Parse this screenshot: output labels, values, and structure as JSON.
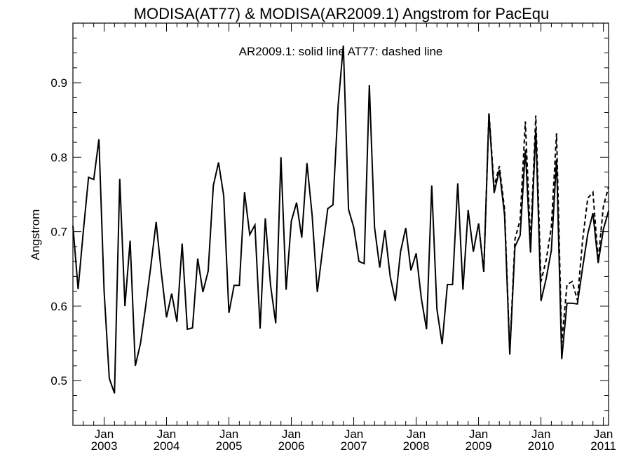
{
  "chart_data": {
    "type": "line",
    "title": "MODISA(AT77) & MODISA(AR2009.1)  Angstrom for PacEqu",
    "annotation": "AR2009.1: solid line   AT77: dashed line",
    "ylabel": "Angstrom",
    "xlabel": "",
    "ylim": [
      0.44,
      0.98
    ],
    "xlim": [
      "2002-07",
      "2011-02"
    ],
    "y_ticks": [
      "0.5",
      "0.6",
      "0.7",
      "0.8",
      "0.9"
    ],
    "x_ticks": [
      {
        "month": "Jan",
        "year": "2003",
        "date": "2003-01"
      },
      {
        "month": "Jan",
        "year": "2004",
        "date": "2004-01"
      },
      {
        "month": "Jan",
        "year": "2005",
        "date": "2005-01"
      },
      {
        "month": "Jan",
        "year": "2006",
        "date": "2006-01"
      },
      {
        "month": "Jan",
        "year": "2007",
        "date": "2007-01"
      },
      {
        "month": "Jan",
        "year": "2008",
        "date": "2008-01"
      },
      {
        "month": "Jan",
        "year": "2009",
        "date": "2009-01"
      },
      {
        "month": "Jan",
        "year": "2010",
        "date": "2010-01"
      },
      {
        "month": "Jan",
        "year": "2011",
        "date": "2011-01"
      }
    ],
    "grid": false,
    "series": [
      {
        "name": "AR2009.1",
        "style": "solid",
        "color": "#000000",
        "x": [
          "2002-07",
          "2002-08",
          "2002-09",
          "2002-10",
          "2002-11",
          "2002-12",
          "2003-01",
          "2003-02",
          "2003-03",
          "2003-04",
          "2003-05",
          "2003-06",
          "2003-07",
          "2003-08",
          "2003-09",
          "2003-10",
          "2003-11",
          "2003-12",
          "2004-01",
          "2004-02",
          "2004-03",
          "2004-04",
          "2004-05",
          "2004-06",
          "2004-07",
          "2004-08",
          "2004-09",
          "2004-10",
          "2004-11",
          "2004-12",
          "2005-01",
          "2005-02",
          "2005-03",
          "2005-04",
          "2005-05",
          "2005-06",
          "2005-07",
          "2005-08",
          "2005-09",
          "2005-10",
          "2005-11",
          "2005-12",
          "2006-01",
          "2006-02",
          "2006-03",
          "2006-04",
          "2006-05",
          "2006-06",
          "2006-07",
          "2006-08",
          "2006-09",
          "2006-10",
          "2006-11",
          "2006-12",
          "2007-01",
          "2007-02",
          "2007-03",
          "2007-04",
          "2007-05",
          "2007-06",
          "2007-07",
          "2007-08",
          "2007-09",
          "2007-10",
          "2007-11",
          "2007-12",
          "2008-01",
          "2008-02",
          "2008-03",
          "2008-04",
          "2008-05",
          "2008-06",
          "2008-07",
          "2008-08",
          "2008-09",
          "2008-10",
          "2008-11",
          "2008-12",
          "2009-01",
          "2009-02",
          "2009-03",
          "2009-04",
          "2009-05",
          "2009-06",
          "2009-07",
          "2009-08",
          "2009-09",
          "2009-10",
          "2009-11",
          "2009-12",
          "2010-01",
          "2010-02",
          "2010-03",
          "2010-04",
          "2010-05",
          "2010-06",
          "2010-07",
          "2010-08",
          "2010-09",
          "2010-10",
          "2010-11",
          "2010-12",
          "2011-01",
          "2011-02"
        ],
        "values": [
          0.708,
          0.623,
          0.7,
          0.773,
          0.77,
          0.824,
          0.62,
          0.503,
          0.483,
          0.771,
          0.6,
          0.688,
          0.52,
          0.55,
          0.6,
          0.655,
          0.713,
          0.645,
          0.585,
          0.617,
          0.579,
          0.684,
          0.569,
          0.571,
          0.664,
          0.619,
          0.647,
          0.762,
          0.793,
          0.748,
          0.591,
          0.628,
          0.628,
          0.753,
          0.696,
          0.709,
          0.57,
          0.718,
          0.628,
          0.577,
          0.8,
          0.622,
          0.714,
          0.739,
          0.692,
          0.792,
          0.722,
          0.619,
          0.675,
          0.731,
          0.736,
          0.87,
          0.95,
          0.73,
          0.706,
          0.66,
          0.657,
          0.897,
          0.706,
          0.652,
          0.702,
          0.64,
          0.607,
          0.673,
          0.705,
          0.648,
          0.671,
          0.61,
          0.569,
          0.762,
          0.596,
          0.549,
          0.629,
          0.629,
          0.765,
          0.622,
          0.729,
          0.673,
          0.711,
          0.646,
          0.858,
          0.752,
          0.783,
          0.722,
          0.535,
          0.68,
          0.695,
          0.81,
          0.672,
          0.838,
          0.607,
          0.637,
          0.675,
          0.797,
          0.529,
          0.604,
          0.604,
          0.603,
          0.651,
          0.697,
          0.725,
          0.658,
          0.703,
          0.728
        ]
      },
      {
        "name": "AT77",
        "style": "dashed",
        "color": "#000000",
        "x": [
          "2009-01",
          "2009-02",
          "2009-03",
          "2009-04",
          "2009-05",
          "2009-06",
          "2009-07",
          "2009-08",
          "2009-09",
          "2009-10",
          "2009-11",
          "2009-12",
          "2010-01",
          "2010-02",
          "2010-03",
          "2010-04",
          "2010-05",
          "2010-06",
          "2010-07",
          "2010-08",
          "2010-09",
          "2010-10",
          "2010-11",
          "2010-12",
          "2011-01",
          "2011-02"
        ],
        "values": [
          0.711,
          0.646,
          0.86,
          0.76,
          0.788,
          0.73,
          0.538,
          0.69,
          0.716,
          0.848,
          0.686,
          0.856,
          0.633,
          0.662,
          0.706,
          0.832,
          0.551,
          0.629,
          0.633,
          0.608,
          0.688,
          0.745,
          0.753,
          0.662,
          0.734,
          0.76
        ]
      }
    ]
  }
}
